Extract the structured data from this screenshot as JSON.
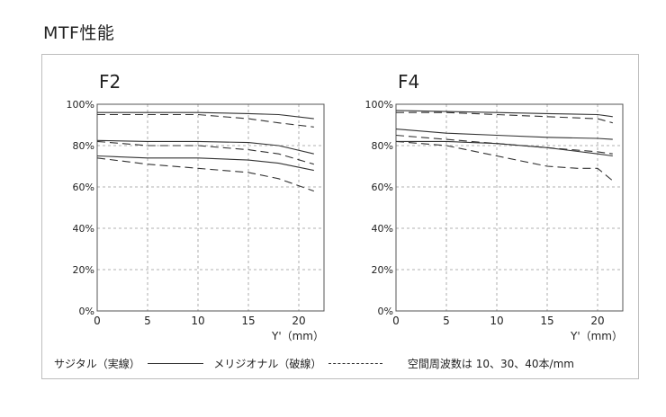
{
  "title": "MTF性能",
  "legend": {
    "sagittal": "サジタル（実線）",
    "meridional": "メリジオナル（破線）",
    "frequency": "空間周波数は 10、30、40本/mm"
  },
  "chart_data": [
    {
      "type": "line",
      "title": "F2",
      "xlabel": "Y'（mm）",
      "ylabel": "",
      "xlim": [
        0,
        22.5
      ],
      "ylim": [
        0,
        100
      ],
      "xticks": [
        0,
        5,
        10,
        15,
        20
      ],
      "yticks": [
        0,
        20,
        40,
        60,
        80,
        100
      ],
      "ytick_labels": [
        "0%",
        "20%",
        "40%",
        "60%",
        "80%",
        "100%"
      ],
      "grid": true,
      "series": [
        {
          "style": "solid",
          "x": [
            0,
            5,
            10,
            15,
            18,
            21.5
          ],
          "values": [
            96,
            96,
            96,
            95.5,
            95,
            93
          ]
        },
        {
          "style": "dashed",
          "x": [
            0,
            5,
            10,
            15,
            18,
            21.5
          ],
          "values": [
            95,
            95,
            95,
            93,
            91,
            89
          ]
        },
        {
          "style": "solid",
          "x": [
            0,
            5,
            10,
            15,
            18,
            21.5
          ],
          "values": [
            82.5,
            82,
            82,
            81.5,
            80,
            76
          ]
        },
        {
          "style": "dashed",
          "x": [
            0,
            5,
            10,
            15,
            18,
            21.5
          ],
          "values": [
            82,
            80,
            80,
            78,
            76,
            71
          ]
        },
        {
          "style": "solid",
          "x": [
            0,
            5,
            10,
            15,
            18,
            21.5
          ],
          "values": [
            75,
            74,
            74,
            73,
            71.5,
            68
          ]
        },
        {
          "style": "dashed",
          "x": [
            0,
            5,
            10,
            15,
            18,
            21.5
          ],
          "values": [
            74,
            71,
            69,
            67,
            64,
            58
          ]
        }
      ]
    },
    {
      "type": "line",
      "title": "F4",
      "xlabel": "Y'（mm）",
      "ylabel": "",
      "xlim": [
        0,
        22.5
      ],
      "ylim": [
        0,
        100
      ],
      "xticks": [
        0,
        5,
        10,
        15,
        20
      ],
      "yticks": [
        0,
        20,
        40,
        60,
        80,
        100
      ],
      "ytick_labels": [
        "0%",
        "20%",
        "40%",
        "60%",
        "80%",
        "100%"
      ],
      "grid": true,
      "series": [
        {
          "style": "solid",
          "x": [
            0,
            5,
            10,
            15,
            20,
            21.5
          ],
          "values": [
            97,
            96.5,
            96,
            95.5,
            95,
            94
          ]
        },
        {
          "style": "dashed",
          "x": [
            0,
            5,
            10,
            15,
            20,
            21.5
          ],
          "values": [
            96,
            96,
            95,
            94,
            93,
            91
          ]
        },
        {
          "style": "solid",
          "x": [
            0,
            5,
            10,
            15,
            20,
            21.5
          ],
          "values": [
            88,
            86,
            85,
            84,
            83.5,
            83
          ]
        },
        {
          "style": "dashed",
          "x": [
            0,
            5,
            10,
            15,
            20,
            21.5
          ],
          "values": [
            85,
            83,
            81,
            79,
            77,
            76
          ]
        },
        {
          "style": "solid",
          "x": [
            0,
            5,
            10,
            15,
            20,
            21.5
          ],
          "values": [
            82,
            82,
            81,
            79,
            76,
            75
          ]
        },
        {
          "style": "dashed",
          "x": [
            0,
            5,
            10,
            15,
            18,
            20,
            21.5
          ],
          "values": [
            82,
            80,
            75,
            70,
            69,
            69,
            63
          ]
        }
      ]
    }
  ]
}
